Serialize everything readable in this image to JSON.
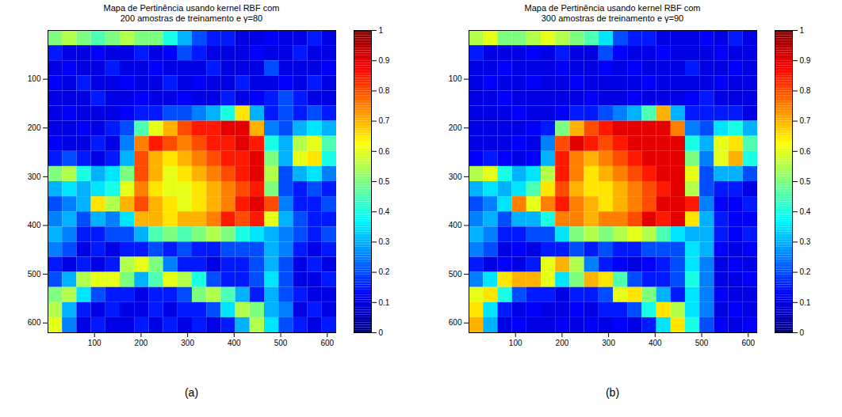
{
  "chart_data": [
    {
      "type": "heatmap",
      "title": "Mapa de Pertinência  usando kernel RBF com\n200 amostras de treinamento e γ=80",
      "caption": "(a)",
      "xlim": [
        0,
        620
      ],
      "xticks": [
        100,
        200,
        300,
        400,
        500,
        600
      ],
      "ylim": [
        620,
        0
      ],
      "yticks": [
        100,
        200,
        300,
        400,
        500,
        600
      ],
      "color": "jet",
      "colorbar_range": [
        0,
        1
      ],
      "colorbar_ticks": [
        0,
        0.1,
        0.2,
        0.3,
        0.4,
        0.5,
        0.6,
        0.7,
        0.8,
        0.9,
        1
      ],
      "cells": [
        [
          0.5,
          0.55,
          0.5,
          0.45,
          0.5,
          0.55,
          0.5,
          0.5,
          0.4,
          0.3,
          0.2,
          0.15,
          0.15,
          0.1,
          0.1,
          0.12,
          0.1,
          0.1,
          0.15,
          0.1
        ],
        [
          0.15,
          0.1,
          0.1,
          0.12,
          0.1,
          0.1,
          0.15,
          0.1,
          0.12,
          0.2,
          0.15,
          0.1,
          0.1,
          0.1,
          0.12,
          0.1,
          0.1,
          0.15,
          0.1,
          0.1
        ],
        [
          0.1,
          0.12,
          0.1,
          0.1,
          0.15,
          0.1,
          0.1,
          0.12,
          0.1,
          0.1,
          0.1,
          0.15,
          0.1,
          0.1,
          0.1,
          0.2,
          0.1,
          0.1,
          0.1,
          0.12
        ],
        [
          0.12,
          0.1,
          0.15,
          0.1,
          0.1,
          0.12,
          0.1,
          0.1,
          0.15,
          0.1,
          0.12,
          0.1,
          0.1,
          0.15,
          0.1,
          0.1,
          0.12,
          0.1,
          0.15,
          0.1
        ],
        [
          0.1,
          0.1,
          0.1,
          0.15,
          0.1,
          0.1,
          0.12,
          0.1,
          0.1,
          0.12,
          0.1,
          0.1,
          0.15,
          0.1,
          0.12,
          0.15,
          0.2,
          0.15,
          0.1,
          0.1
        ],
        [
          0.1,
          0.12,
          0.1,
          0.1,
          0.1,
          0.12,
          0.15,
          0.15,
          0.2,
          0.2,
          0.25,
          0.3,
          0.4,
          0.65,
          0.3,
          0.15,
          0.2,
          0.15,
          0.2,
          0.15
        ],
        [
          0.1,
          0.1,
          0.12,
          0.1,
          0.15,
          0.2,
          0.45,
          0.6,
          0.7,
          0.8,
          0.85,
          0.85,
          0.9,
          0.9,
          0.7,
          0.25,
          0.2,
          0.3,
          0.35,
          0.3
        ],
        [
          0.12,
          0.1,
          0.1,
          0.15,
          0.1,
          0.25,
          0.75,
          0.85,
          0.8,
          0.75,
          0.8,
          0.85,
          0.85,
          0.9,
          0.85,
          0.4,
          0.3,
          0.55,
          0.6,
          0.45
        ],
        [
          0.15,
          0.2,
          0.15,
          0.1,
          0.15,
          0.3,
          0.8,
          0.7,
          0.65,
          0.7,
          0.75,
          0.8,
          0.85,
          0.85,
          0.9,
          0.5,
          0.3,
          0.6,
          0.65,
          0.4
        ],
        [
          0.5,
          0.55,
          0.4,
          0.3,
          0.35,
          0.5,
          0.8,
          0.7,
          0.6,
          0.65,
          0.7,
          0.75,
          0.8,
          0.85,
          0.9,
          0.55,
          0.2,
          0.3,
          0.35,
          0.25
        ],
        [
          0.3,
          0.35,
          0.3,
          0.35,
          0.4,
          0.6,
          0.75,
          0.65,
          0.6,
          0.6,
          0.65,
          0.7,
          0.75,
          0.8,
          0.85,
          0.5,
          0.2,
          0.15,
          0.2,
          0.15
        ],
        [
          0.2,
          0.25,
          0.3,
          0.65,
          0.55,
          0.7,
          0.8,
          0.7,
          0.65,
          0.6,
          0.65,
          0.7,
          0.75,
          0.85,
          0.9,
          0.8,
          0.25,
          0.15,
          0.15,
          0.2
        ],
        [
          0.25,
          0.3,
          0.2,
          0.3,
          0.25,
          0.35,
          0.7,
          0.7,
          0.65,
          0.7,
          0.7,
          0.75,
          0.85,
          0.8,
          0.85,
          0.6,
          0.3,
          0.2,
          0.15,
          0.15
        ],
        [
          0.3,
          0.25,
          0.15,
          0.15,
          0.2,
          0.2,
          0.3,
          0.45,
          0.5,
          0.45,
          0.5,
          0.55,
          0.5,
          0.4,
          0.35,
          0.3,
          0.25,
          0.2,
          0.15,
          0.2
        ],
        [
          0.25,
          0.2,
          0.1,
          0.15,
          0.1,
          0.15,
          0.15,
          0.2,
          0.15,
          0.2,
          0.15,
          0.15,
          0.2,
          0.2,
          0.2,
          0.3,
          0.25,
          0.15,
          0.1,
          0.15
        ],
        [
          0.15,
          0.1,
          0.15,
          0.1,
          0.15,
          0.55,
          0.6,
          0.5,
          0.25,
          0.15,
          0.15,
          0.1,
          0.15,
          0.15,
          0.2,
          0.3,
          0.2,
          0.1,
          0.15,
          0.1
        ],
        [
          0.2,
          0.3,
          0.55,
          0.6,
          0.6,
          0.5,
          0.3,
          0.45,
          0.6,
          0.55,
          0.4,
          0.2,
          0.15,
          0.15,
          0.2,
          0.35,
          0.2,
          0.1,
          0.1,
          0.15
        ],
        [
          0.5,
          0.55,
          0.35,
          0.2,
          0.15,
          0.15,
          0.1,
          0.15,
          0.15,
          0.2,
          0.5,
          0.55,
          0.45,
          0.3,
          0.15,
          0.3,
          0.2,
          0.15,
          0.1,
          0.1
        ],
        [
          0.55,
          0.3,
          0.15,
          0.1,
          0.15,
          0.1,
          0.1,
          0.15,
          0.1,
          0.15,
          0.15,
          0.2,
          0.35,
          0.55,
          0.5,
          0.3,
          0.25,
          0.1,
          0.15,
          0.1
        ],
        [
          0.6,
          0.25,
          0.1,
          0.15,
          0.1,
          0.1,
          0.15,
          0.1,
          0.15,
          0.1,
          0.15,
          0.1,
          0.15,
          0.3,
          0.55,
          0.35,
          0.2,
          0.15,
          0.1,
          0.15
        ]
      ]
    },
    {
      "type": "heatmap",
      "title": "Mapa de Pertinência  usando kernel RBF com\n300 amostras de treinamento e γ=90",
      "caption": "(b)",
      "xlim": [
        0,
        620
      ],
      "xticks": [
        100,
        200,
        300,
        400,
        500,
        600
      ],
      "ylim": [
        620,
        0
      ],
      "yticks": [
        100,
        200,
        300,
        400,
        500,
        600
      ],
      "color": "jet",
      "colorbar_range": [
        0,
        1
      ],
      "colorbar_ticks": [
        0,
        0.1,
        0.2,
        0.3,
        0.4,
        0.5,
        0.6,
        0.7,
        0.8,
        0.9,
        1
      ],
      "cells": [
        [
          0.55,
          0.6,
          0.5,
          0.5,
          0.55,
          0.6,
          0.55,
          0.5,
          0.45,
          0.35,
          0.2,
          0.15,
          0.15,
          0.1,
          0.1,
          0.1,
          0.12,
          0.1,
          0.15,
          0.1
        ],
        [
          0.15,
          0.1,
          0.1,
          0.1,
          0.12,
          0.1,
          0.15,
          0.1,
          0.1,
          0.2,
          0.12,
          0.1,
          0.1,
          0.12,
          0.1,
          0.1,
          0.1,
          0.12,
          0.1,
          0.1
        ],
        [
          0.1,
          0.1,
          0.12,
          0.1,
          0.1,
          0.1,
          0.12,
          0.1,
          0.1,
          0.12,
          0.1,
          0.12,
          0.1,
          0.1,
          0.1,
          0.15,
          0.1,
          0.1,
          0.12,
          0.1
        ],
        [
          0.1,
          0.12,
          0.1,
          0.1,
          0.12,
          0.1,
          0.1,
          0.12,
          0.1,
          0.1,
          0.1,
          0.1,
          0.12,
          0.1,
          0.1,
          0.1,
          0.1,
          0.12,
          0.1,
          0.1
        ],
        [
          0.1,
          0.1,
          0.12,
          0.1,
          0.1,
          0.1,
          0.1,
          0.1,
          0.12,
          0.1,
          0.1,
          0.12,
          0.1,
          0.1,
          0.1,
          0.12,
          0.15,
          0.1,
          0.1,
          0.1
        ],
        [
          0.1,
          0.1,
          0.1,
          0.12,
          0.1,
          0.1,
          0.12,
          0.15,
          0.15,
          0.2,
          0.25,
          0.3,
          0.45,
          0.7,
          0.3,
          0.15,
          0.15,
          0.15,
          0.15,
          0.1
        ],
        [
          0.1,
          0.1,
          0.1,
          0.1,
          0.12,
          0.15,
          0.5,
          0.7,
          0.8,
          0.85,
          0.9,
          0.9,
          0.9,
          0.9,
          0.75,
          0.25,
          0.2,
          0.35,
          0.4,
          0.3
        ],
        [
          0.1,
          0.1,
          0.1,
          0.12,
          0.1,
          0.25,
          0.8,
          0.9,
          0.85,
          0.8,
          0.85,
          0.9,
          0.9,
          0.9,
          0.9,
          0.4,
          0.3,
          0.6,
          0.65,
          0.45
        ],
        [
          0.12,
          0.15,
          0.12,
          0.1,
          0.12,
          0.3,
          0.85,
          0.75,
          0.7,
          0.75,
          0.8,
          0.85,
          0.9,
          0.9,
          0.9,
          0.5,
          0.25,
          0.6,
          0.7,
          0.4
        ],
        [
          0.55,
          0.6,
          0.4,
          0.3,
          0.35,
          0.55,
          0.85,
          0.75,
          0.65,
          0.7,
          0.75,
          0.8,
          0.85,
          0.9,
          0.9,
          0.6,
          0.2,
          0.3,
          0.3,
          0.2
        ],
        [
          0.3,
          0.35,
          0.3,
          0.35,
          0.45,
          0.65,
          0.8,
          0.7,
          0.65,
          0.65,
          0.7,
          0.75,
          0.8,
          0.85,
          0.9,
          0.55,
          0.2,
          0.15,
          0.15,
          0.1
        ],
        [
          0.2,
          0.25,
          0.35,
          0.75,
          0.6,
          0.75,
          0.85,
          0.75,
          0.7,
          0.65,
          0.7,
          0.75,
          0.8,
          0.9,
          0.9,
          0.85,
          0.25,
          0.12,
          0.12,
          0.15
        ],
        [
          0.25,
          0.3,
          0.2,
          0.3,
          0.3,
          0.4,
          0.75,
          0.75,
          0.7,
          0.75,
          0.75,
          0.8,
          0.9,
          0.85,
          0.9,
          0.65,
          0.3,
          0.15,
          0.12,
          0.12
        ],
        [
          0.3,
          0.25,
          0.15,
          0.15,
          0.2,
          0.2,
          0.35,
          0.5,
          0.55,
          0.5,
          0.55,
          0.6,
          0.55,
          0.45,
          0.35,
          0.3,
          0.3,
          0.15,
          0.12,
          0.15
        ],
        [
          0.25,
          0.2,
          0.1,
          0.12,
          0.1,
          0.15,
          0.15,
          0.2,
          0.15,
          0.2,
          0.15,
          0.15,
          0.2,
          0.2,
          0.2,
          0.35,
          0.3,
          0.12,
          0.1,
          0.12
        ],
        [
          0.15,
          0.1,
          0.12,
          0.1,
          0.15,
          0.6,
          0.7,
          0.55,
          0.25,
          0.15,
          0.12,
          0.1,
          0.12,
          0.15,
          0.2,
          0.35,
          0.25,
          0.1,
          0.12,
          0.1
        ],
        [
          0.25,
          0.35,
          0.65,
          0.7,
          0.7,
          0.6,
          0.35,
          0.5,
          0.7,
          0.65,
          0.45,
          0.2,
          0.15,
          0.15,
          0.2,
          0.4,
          0.25,
          0.1,
          0.1,
          0.12
        ],
        [
          0.6,
          0.65,
          0.4,
          0.2,
          0.15,
          0.15,
          0.1,
          0.15,
          0.15,
          0.2,
          0.6,
          0.65,
          0.5,
          0.3,
          0.15,
          0.35,
          0.25,
          0.12,
          0.1,
          0.1
        ],
        [
          0.65,
          0.35,
          0.15,
          0.1,
          0.12,
          0.1,
          0.1,
          0.12,
          0.1,
          0.15,
          0.15,
          0.2,
          0.4,
          0.65,
          0.55,
          0.35,
          0.25,
          0.1,
          0.12,
          0.1
        ],
        [
          0.7,
          0.3,
          0.1,
          0.12,
          0.1,
          0.1,
          0.12,
          0.1,
          0.12,
          0.1,
          0.12,
          0.1,
          0.15,
          0.35,
          0.65,
          0.4,
          0.2,
          0.12,
          0.1,
          0.12
        ]
      ]
    }
  ]
}
